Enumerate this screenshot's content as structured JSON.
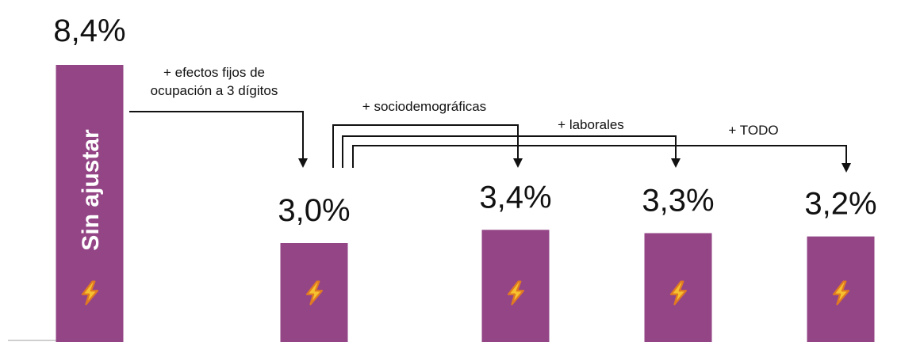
{
  "colors": {
    "bar": "#934586",
    "text": "#111111",
    "icon_fill": "#f6c12f",
    "icon_stroke": "#e07a22"
  },
  "icon": "lightning-bolt-icon",
  "chart_data": {
    "type": "bar",
    "title": "",
    "xlabel": "",
    "ylabel": "",
    "ylim": [
      0,
      9
    ],
    "grid": false,
    "legend": "none",
    "categories": [
      "Sin ajustar",
      "",
      "",
      "",
      ""
    ],
    "values": [
      8.4,
      3.0,
      3.4,
      3.3,
      3.2
    ],
    "value_labels": [
      "8,4%",
      "3,0%",
      "3,4%",
      "3,3%",
      "3,2%"
    ],
    "bar_inner_label": "Sin ajustar",
    "annotations": [
      {
        "lines": [
          "+ efectos fijos de",
          "ocupación a 3 dígitos"
        ],
        "from": 0,
        "to": 1
      },
      {
        "lines": [
          "+ sociodemográficas"
        ],
        "from": 1,
        "to": 2
      },
      {
        "lines": [
          "+ laborales"
        ],
        "from": 1,
        "to": 3
      },
      {
        "lines": [
          "+ TODO"
        ],
        "from": 1,
        "to": 4
      }
    ]
  }
}
